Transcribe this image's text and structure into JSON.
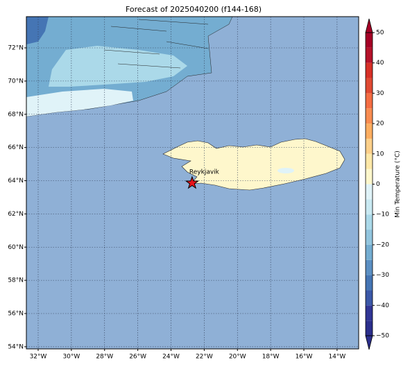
{
  "title": "Forecast of 2025040200 (f144-168)",
  "map": {
    "lon_range": [
      -32.71,
      -12.7
    ],
    "lat_range": [
      53.87,
      73.88
    ],
    "lon_ticks": [
      {
        "value": -32,
        "label": "32°W"
      },
      {
        "value": -30,
        "label": "30°W"
      },
      {
        "value": -28,
        "label": "28°W"
      },
      {
        "value": -26,
        "label": "26°W"
      },
      {
        "value": -24,
        "label": "24°W"
      },
      {
        "value": -22,
        "label": "22°W"
      },
      {
        "value": -20,
        "label": "20°W"
      },
      {
        "value": -18,
        "label": "18°W"
      },
      {
        "value": -16,
        "label": "16°W"
      },
      {
        "value": -14,
        "label": "14°W"
      }
    ],
    "lat_ticks": [
      {
        "value": 72,
        "label": "72°N"
      },
      {
        "value": 70,
        "label": "70°N"
      },
      {
        "value": 68,
        "label": "68°N"
      },
      {
        "value": 66,
        "label": "66°N"
      },
      {
        "value": 64,
        "label": "64°N"
      },
      {
        "value": 62,
        "label": "62°N"
      },
      {
        "value": 60,
        "label": "60°N"
      },
      {
        "value": 58,
        "label": "58°N"
      },
      {
        "value": 56,
        "label": "56°N"
      },
      {
        "value": 54,
        "label": "54°N"
      }
    ],
    "marker": {
      "label": "Reykjavik",
      "lon": -22.73,
      "lat": 63.86,
      "color": "#e8141b"
    }
  },
  "colorbar": {
    "label": "Min Temperature (°C)",
    "range": [
      -50,
      50
    ],
    "ticks": [
      {
        "value": 50,
        "label": "50"
      },
      {
        "value": 40,
        "label": "40"
      },
      {
        "value": 30,
        "label": "30"
      },
      {
        "value": 20,
        "label": "20"
      },
      {
        "value": 10,
        "label": "10"
      },
      {
        "value": 0,
        "label": "0"
      },
      {
        "value": -10,
        "label": "−10"
      },
      {
        "value": -20,
        "label": "−20"
      },
      {
        "value": -30,
        "label": "−30"
      },
      {
        "value": -40,
        "label": "−40"
      },
      {
        "value": -50,
        "label": "−50"
      }
    ],
    "levels": [
      -50,
      -45,
      -40,
      -35,
      -30,
      -25,
      -20,
      -15,
      -10,
      -5,
      0,
      5,
      10,
      15,
      20,
      25,
      30,
      35,
      40,
      45,
      50
    ],
    "colors": [
      "#2b2f8c",
      "#313695",
      "#3b58a8",
      "#4575b4",
      "#5b8fc3",
      "#74add1",
      "#92c5de",
      "#abd9e9",
      "#c9e9f2",
      "#e0f3f8",
      "#fef7cc",
      "#fee8a8",
      "#fdd08a",
      "#fdae61",
      "#f88c51",
      "#f46d43",
      "#e04a33",
      "#d73027",
      "#b5122a",
      "#a50026"
    ]
  }
}
